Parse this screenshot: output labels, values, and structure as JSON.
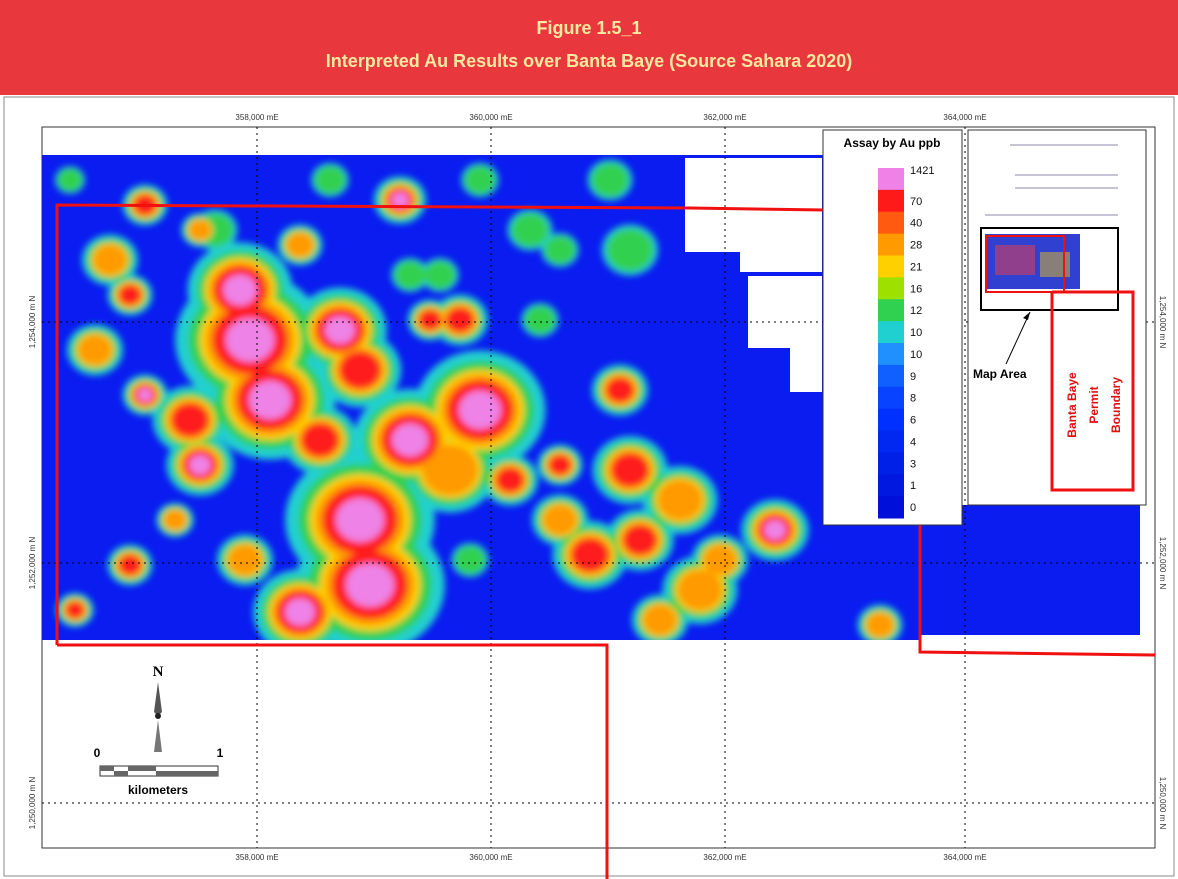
{
  "header": {
    "title": "Figure 1.5_1",
    "subtitle": "Interpreted Au Results over Banta Baye (Source Sahara 2020)"
  },
  "grid": {
    "eastings": [
      "358,000 mE",
      "360,000 mE",
      "362,000 mE",
      "364,000 mE"
    ],
    "northings": [
      "1,254,000 m N",
      "1,252,000 m N",
      "1,250,000 m N"
    ]
  },
  "legend": {
    "title": "Assay by Au ppb",
    "items": [
      {
        "label": "1421",
        "color": "#ee82e6"
      },
      {
        "label": "70",
        "color": "#ff1a1a"
      },
      {
        "label": "40",
        "color": "#ff5a10"
      },
      {
        "label": "28",
        "color": "#ff9a00"
      },
      {
        "label": "21",
        "color": "#ffd000"
      },
      {
        "label": "16",
        "color": "#9ee000"
      },
      {
        "label": "12",
        "color": "#30d050"
      },
      {
        "label": "10",
        "color": "#20d0d0"
      },
      {
        "label": "10",
        "color": "#2090ff"
      },
      {
        "label": "9",
        "color": "#1060ff"
      },
      {
        "label": "8",
        "color": "#0844ff"
      },
      {
        "label": "6",
        "color": "#0030ff"
      },
      {
        "label": "4",
        "color": "#0028f0"
      },
      {
        "label": "3",
        "color": "#0020e8"
      },
      {
        "label": "1",
        "color": "#0018e0"
      },
      {
        "label": "0",
        "color": "#0010d8"
      }
    ]
  },
  "north": "N",
  "scale_bar": {
    "start": "0",
    "end": "1",
    "unit": "kilometers"
  },
  "inset": {
    "map_area": "Map Area",
    "boundary": [
      "Banta Baye",
      "Permit",
      "Boundary"
    ]
  }
}
